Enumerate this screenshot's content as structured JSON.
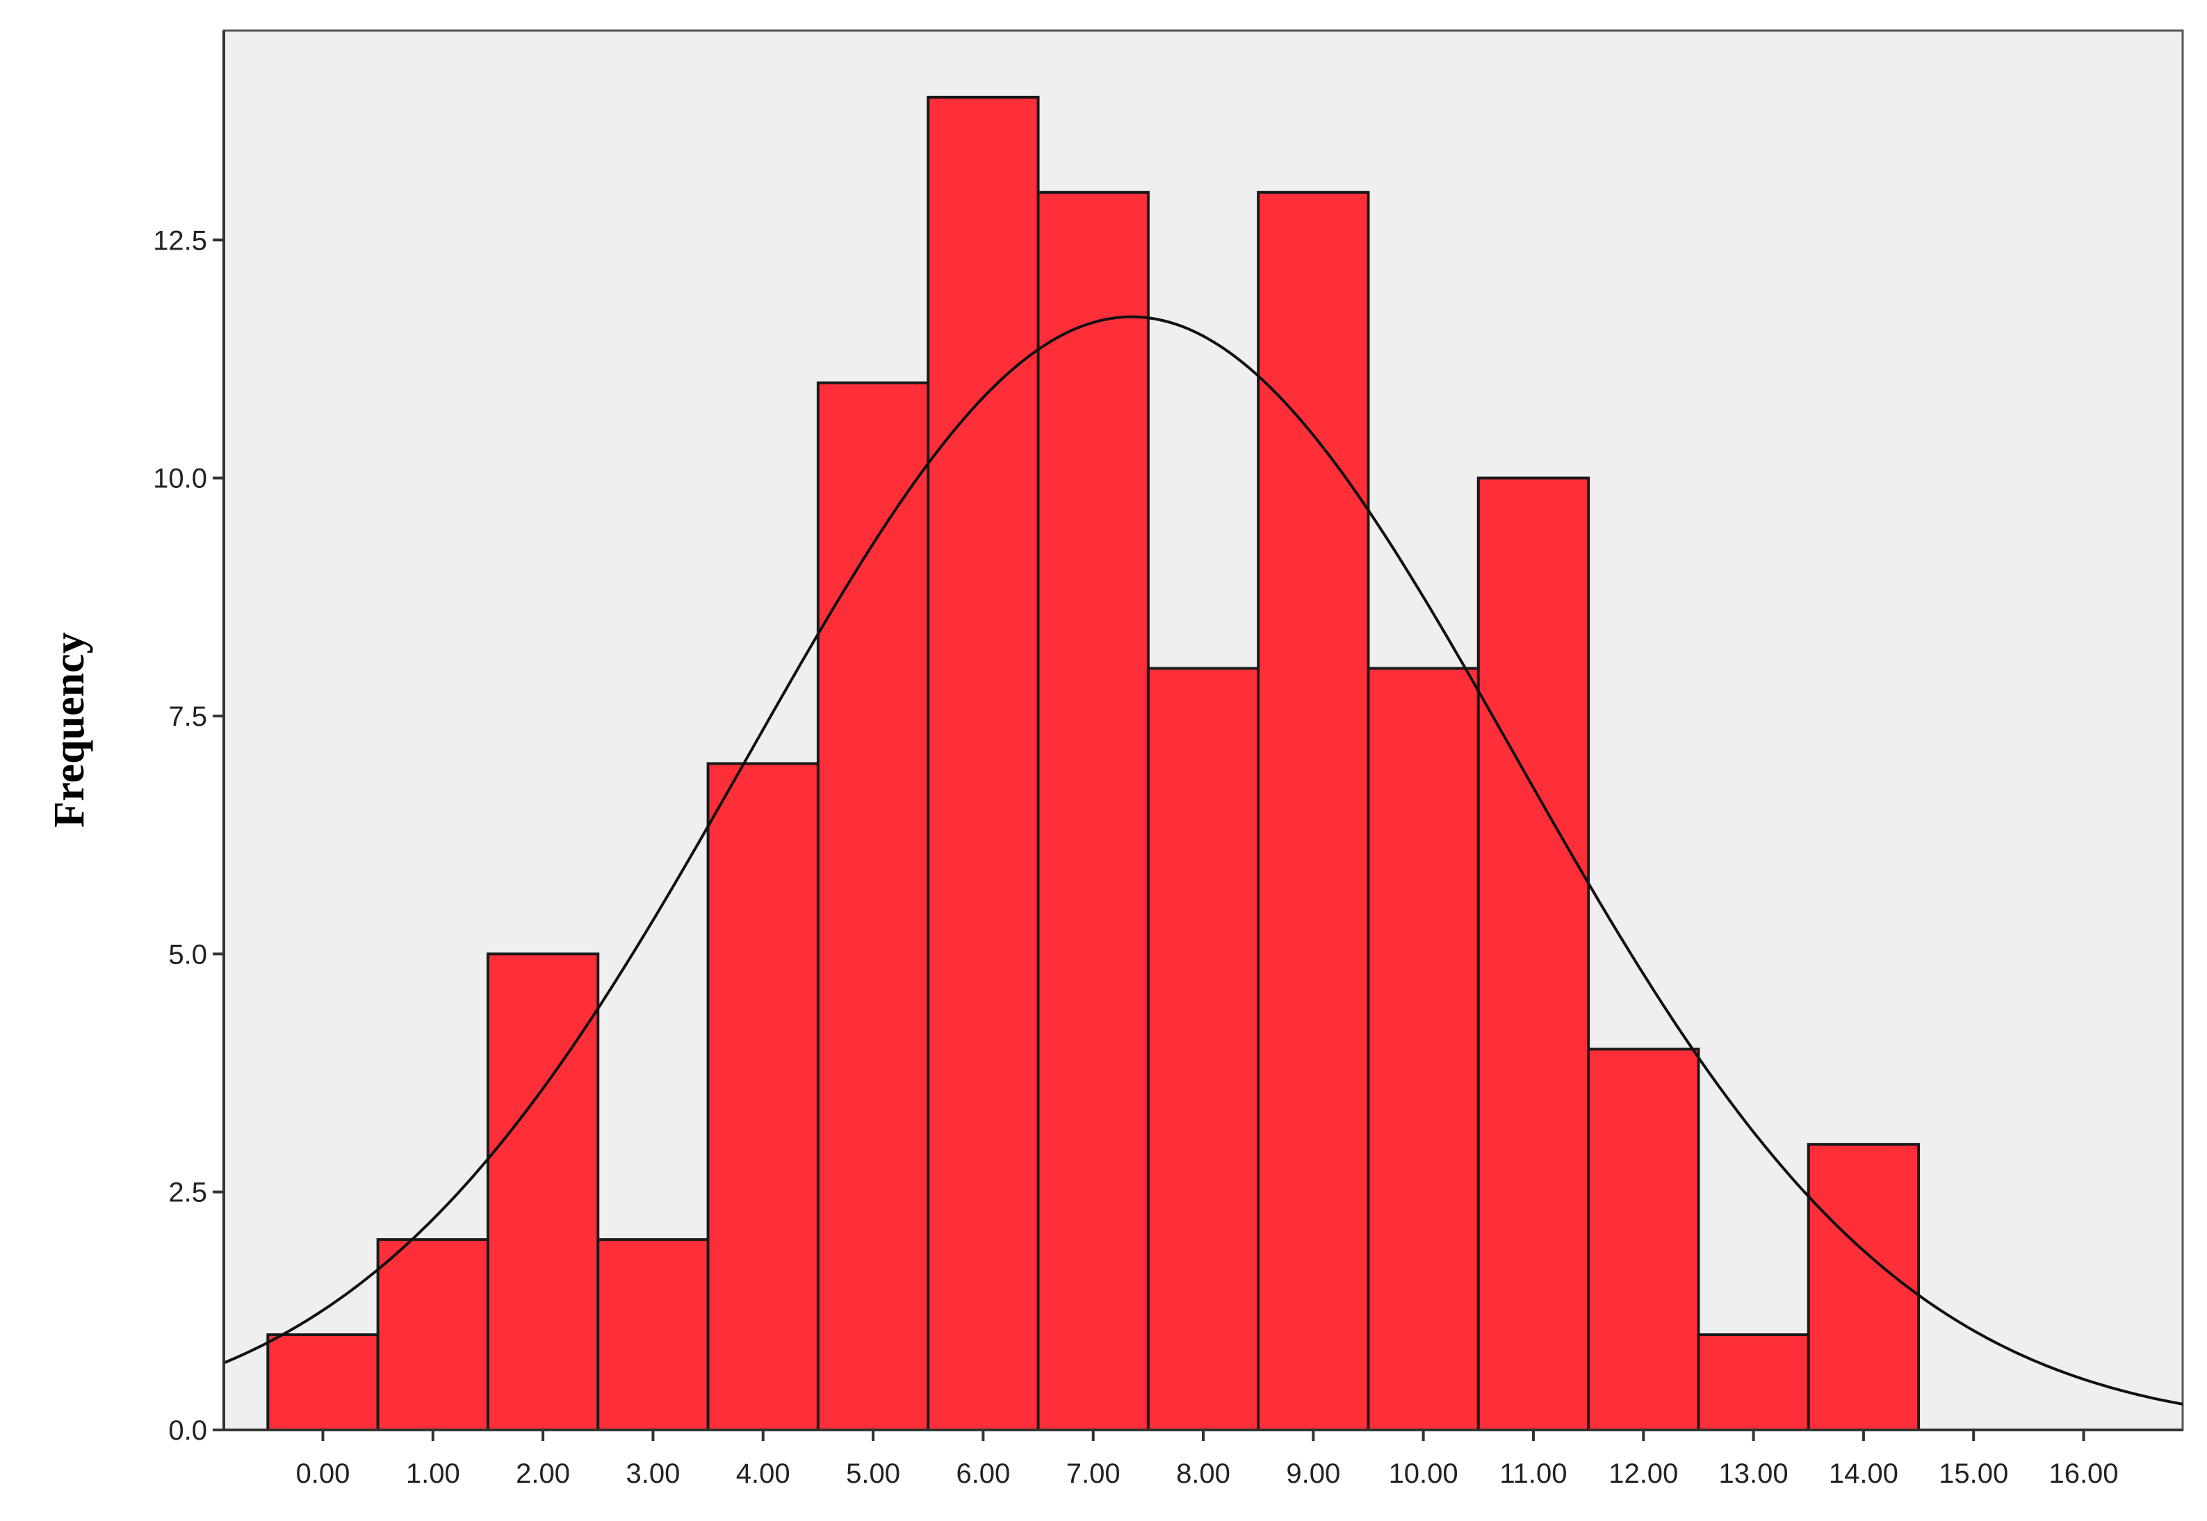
{
  "chart_data": {
    "type": "bar",
    "subtype": "histogram",
    "title": "",
    "xlabel": "",
    "ylabel": "Frequency",
    "categories": [
      "0.00",
      "1.00",
      "2.00",
      "3.00",
      "4.00",
      "5.00",
      "6.00",
      "7.00",
      "8.00",
      "9.00",
      "10.00",
      "11.00",
      "12.00",
      "13.00",
      "14.00"
    ],
    "x_tick_labels": [
      "0.00",
      "1.00",
      "2.00",
      "3.00",
      "4.00",
      "5.00",
      "6.00",
      "7.00",
      "8.00",
      "9.00",
      "10.00",
      "11.00",
      "12.00",
      "13.00",
      "14.00",
      "15.00",
      "16.00"
    ],
    "bin_centers": [
      0,
      1,
      2,
      3,
      4,
      5,
      6,
      7,
      8,
      9,
      10,
      11,
      12,
      13,
      14
    ],
    "values": [
      1,
      2,
      5,
      2,
      7,
      11,
      14,
      13,
      8,
      13,
      8,
      10,
      4,
      1,
      3
    ],
    "y_ticks": [
      0.0,
      2.5,
      5.0,
      7.5,
      10.0,
      12.5
    ],
    "y_tick_labels": [
      "0.0",
      "2.5",
      "5.0",
      "7.5",
      "10.0",
      "12.5"
    ],
    "xlim": [
      -0.9,
      16.9
    ],
    "ylim": [
      0,
      14.7
    ],
    "normal_curve": {
      "mean": 7.35,
      "sd": 3.48,
      "n": 102,
      "bin_width": 1
    },
    "bar_color": "#ff2f3a",
    "bar_edge_color": "#1a1a1a",
    "plot_background": "#efefef",
    "curve_color": "#111111",
    "grid": false,
    "legend": "none"
  }
}
